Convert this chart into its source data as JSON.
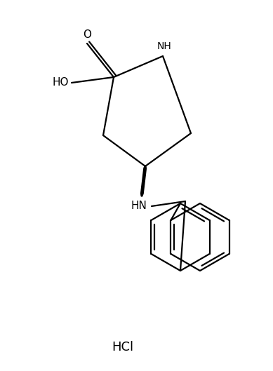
{
  "background_color": "#ffffff",
  "line_color": "#000000",
  "font_color": "#000000",
  "lw": 1.6,
  "HCl_label": "HCl",
  "NH_label": "NH",
  "HN_label": "HN",
  "HO_label": "HO",
  "O_label": "O"
}
